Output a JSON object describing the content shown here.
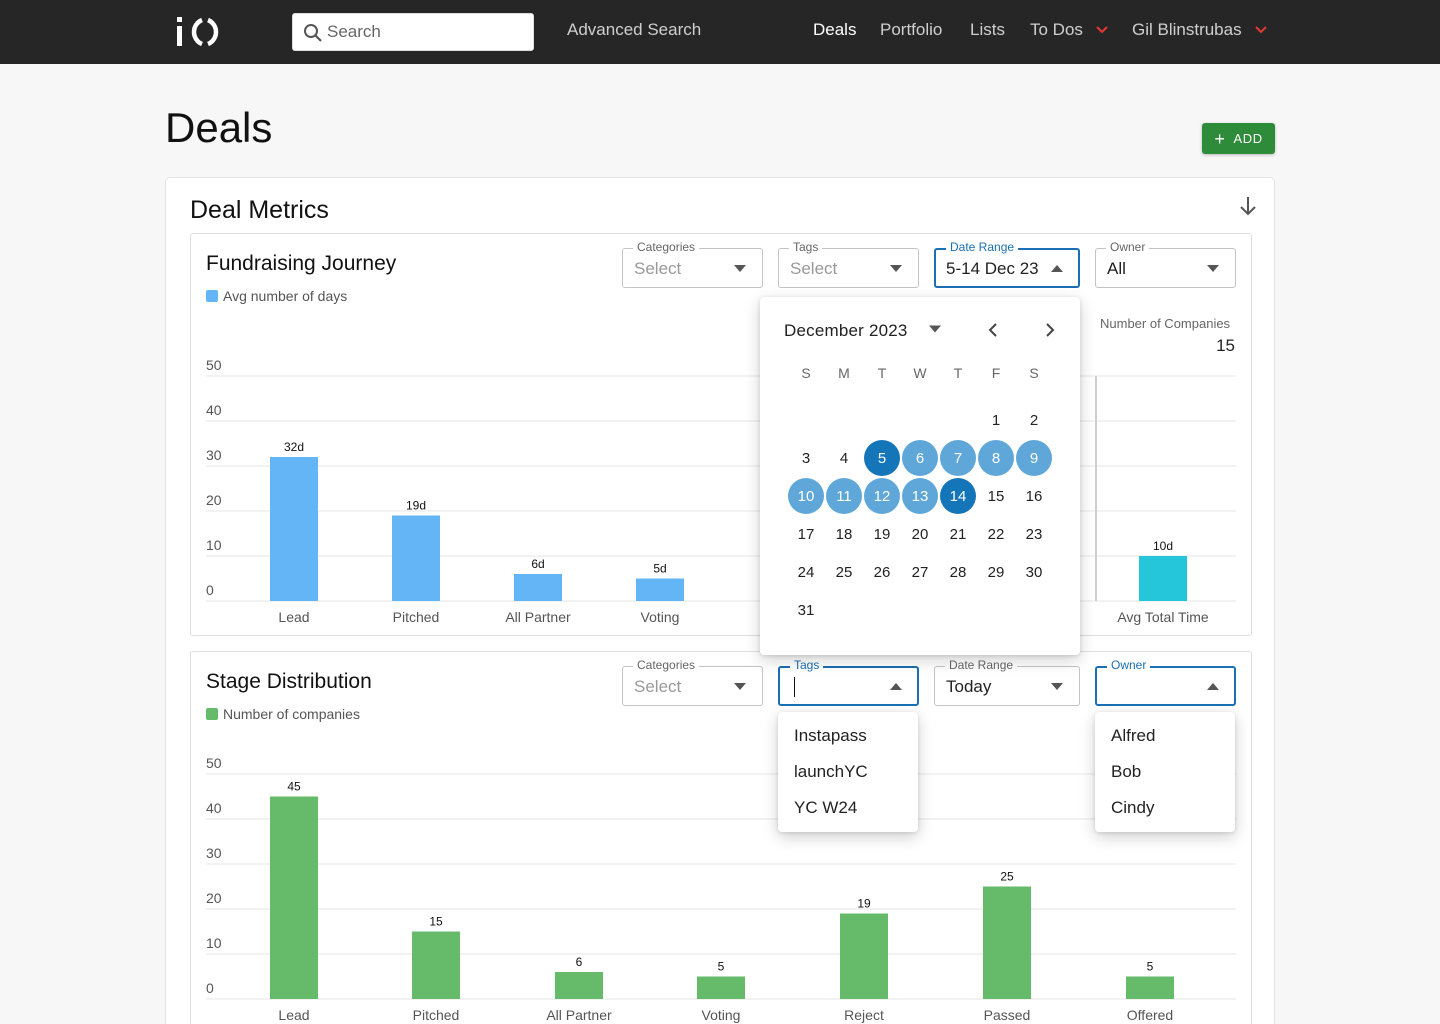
{
  "nav": {
    "search_placeholder": "Search",
    "advanced_search": "Advanced Search",
    "links": [
      "Deals",
      "Portfolio",
      "Lists",
      "To Dos"
    ],
    "user": "Gil Blinstrubas"
  },
  "page": {
    "title": "Deals",
    "add_label": "ADD"
  },
  "metrics": {
    "title": "Deal Metrics"
  },
  "fundraising": {
    "title": "Fundraising Journey",
    "legend": "Avg number of days",
    "filters": {
      "categories": {
        "label": "Categories",
        "value": "Select"
      },
      "tags": {
        "label": "Tags",
        "value": "Select"
      },
      "date_range": {
        "label": "Date Range",
        "value": "5-14 Dec 23"
      },
      "owner": {
        "label": "Owner",
        "value": "All"
      }
    },
    "companies_label": "Number of Companies",
    "companies_value": "15"
  },
  "date_picker": {
    "month": "December",
    "year": "2023",
    "weekdays": [
      "S",
      "M",
      "T",
      "W",
      "T",
      "F",
      "S"
    ],
    "days": [
      "1",
      "2",
      "3",
      "4",
      "5",
      "6",
      "7",
      "8",
      "9",
      "10",
      "11",
      "12",
      "13",
      "14",
      "15",
      "16",
      "17",
      "18",
      "19",
      "20",
      "21",
      "22",
      "23",
      "24",
      "25",
      "26",
      "27",
      "28",
      "29",
      "30",
      "31"
    ],
    "first_weekday_index": 5,
    "range_start": 5,
    "range_end": 14
  },
  "stage": {
    "title": "Stage Distribution",
    "legend": "Number of companies",
    "filters": {
      "categories": {
        "label": "Categories",
        "value": "Select"
      },
      "tags": {
        "label": "Tags",
        "value": ""
      },
      "date_range": {
        "label": "Date Range",
        "value": "Today"
      },
      "owner": {
        "label": "Owner",
        "value": ""
      }
    }
  },
  "tags_menu": [
    "Instapass",
    "launchYC",
    "YC W24"
  ],
  "owner_menu": [
    "Alfred",
    "Bob",
    "Cindy"
  ],
  "colors": {
    "topbar": "#262626",
    "accent_blue": "#1a6fb5",
    "add_green": "#2e8b3a",
    "bar_blue": "#64b5f6",
    "bar_teal": "#26c6da",
    "bar_green": "#66bb6a",
    "caret_red": "#e53935"
  },
  "chart_data": [
    {
      "type": "bar",
      "title": "Fundraising Journey",
      "yticks": [
        0,
        10,
        20,
        30,
        40,
        50
      ],
      "ylim": [
        0,
        50
      ],
      "categories": [
        "Lead",
        "Pitched",
        "All Partner",
        "Voting",
        "",
        "",
        "",
        "Avg Total Time"
      ],
      "series": [
        {
          "name": "Avg number of days",
          "values": [
            32,
            19,
            6,
            5,
            null,
            null,
            null,
            10
          ]
        }
      ],
      "data_labels": [
        "32d",
        "19d",
        "6d",
        "5d",
        "",
        "",
        "",
        "10d"
      ]
    },
    {
      "type": "bar",
      "title": "Stage Distribution",
      "yticks": [
        0,
        10,
        20,
        30,
        40,
        50
      ],
      "ylim": [
        0,
        50
      ],
      "categories": [
        "Lead",
        "Pitched",
        "All Partner",
        "Voting",
        "Reject",
        "Passed",
        "Offered"
      ],
      "series": [
        {
          "name": "Number of companies",
          "values": [
            45,
            15,
            6,
            5,
            19,
            25,
            5
          ]
        }
      ],
      "data_labels": [
        "45",
        "15",
        "6",
        "5",
        "19",
        "25",
        "5"
      ]
    }
  ]
}
